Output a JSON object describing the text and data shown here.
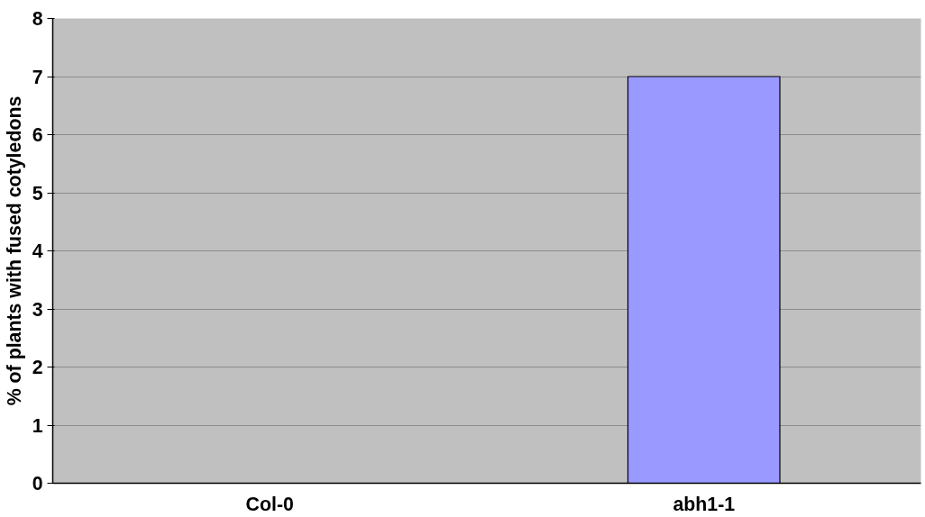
{
  "chart_data": {
    "type": "bar",
    "ylabel": "% of plants with fused cotyledons",
    "categories": [
      "Col-0",
      "abh1-1"
    ],
    "series": [
      {
        "color": "#9999ff",
        "values": [
          0,
          7
        ]
      }
    ],
    "ylim": [
      0,
      8
    ],
    "yticks": [
      0,
      1,
      2,
      3,
      4,
      5,
      6,
      7,
      8
    ],
    "grid": "y"
  }
}
